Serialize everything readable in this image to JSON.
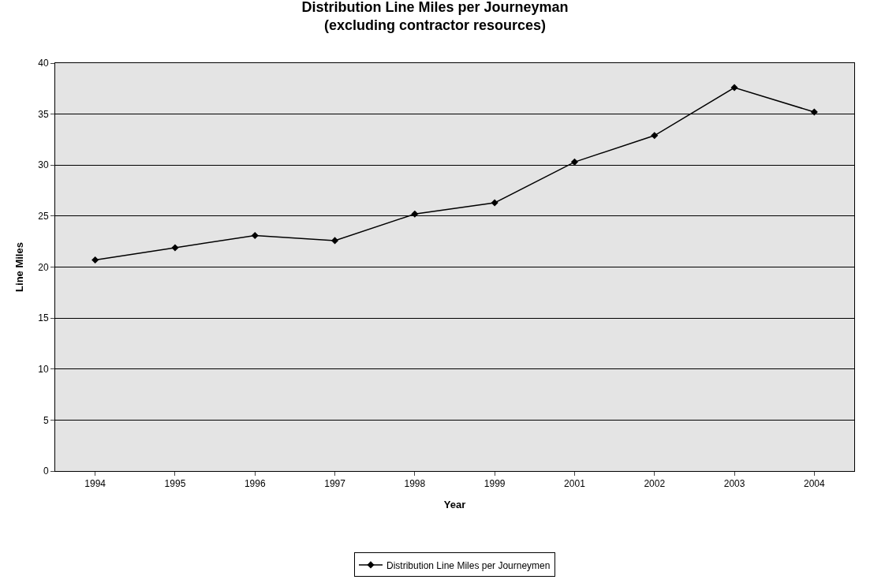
{
  "chart_data": {
    "type": "line",
    "title": "Distribution Line Miles per Journeyman",
    "subtitle": "(excluding contractor resources)",
    "xlabel": "Year",
    "ylabel": "Line Miles",
    "categories": [
      "1994",
      "1995",
      "1996",
      "1997",
      "1998",
      "1999",
      "2001",
      "2002",
      "2003",
      "2004"
    ],
    "series": [
      {
        "name": "Distribution Line Miles per Journeymen",
        "color": "#000000",
        "values": [
          20.7,
          21.9,
          23.1,
          22.6,
          25.2,
          26.3,
          30.3,
          32.9,
          37.6,
          35.2
        ]
      }
    ],
    "ylim": [
      0,
      40
    ],
    "yticks": [
      0,
      5,
      10,
      15,
      20,
      25,
      30,
      35,
      40
    ],
    "grid": "y",
    "legend": "bottom",
    "marker": "diamond",
    "line_style": "solid"
  }
}
